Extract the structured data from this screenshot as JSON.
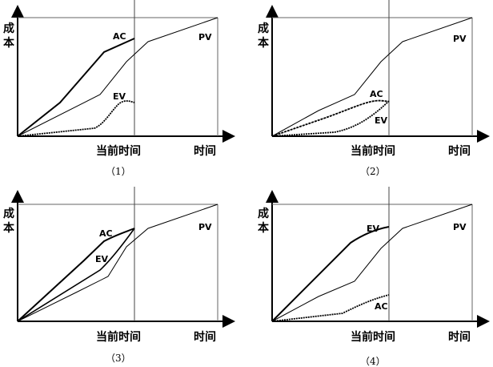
{
  "labels": {
    "y_axis": "成本",
    "current_time": "当前时间",
    "time": "时间"
  },
  "panels": [
    {
      "caption": "（1）",
      "curves": {
        "ac": "AC",
        "ev": "EV",
        "pv": "PV"
      }
    },
    {
      "caption": "（2）",
      "curves": {
        "ac": "AC",
        "ev": "EV",
        "pv": "PV"
      }
    },
    {
      "caption": "（3）",
      "curves": {
        "ac": "AC",
        "ev": "EV",
        "pv": "PV"
      }
    },
    {
      "caption": "（4）",
      "curves": {
        "ac": "AC",
        "ev": "EV",
        "pv": "PV"
      }
    }
  ]
}
